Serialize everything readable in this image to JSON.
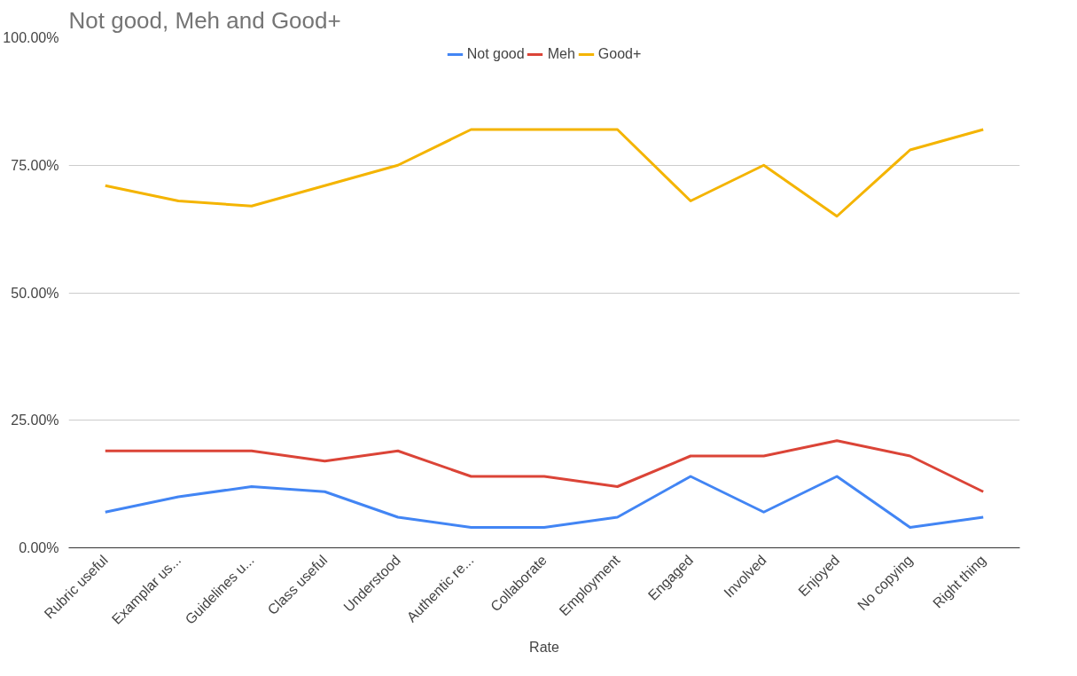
{
  "chart_data": {
    "type": "line",
    "title": "Not good, Meh and Good+",
    "xlabel": "Rate",
    "categories": [
      "Rubric useful",
      "Examplar us...",
      "Guidelines u...",
      "Class useful",
      "Understood",
      "Authentic re...",
      "Collaborate",
      "Employment",
      "Engaged",
      "Involved",
      "Enjoyed",
      "No copying",
      "Right thing"
    ],
    "series": [
      {
        "name": "Not good",
        "color": "#4285f4",
        "values": [
          7,
          10,
          12,
          11,
          6,
          4,
          4,
          6,
          14,
          7,
          14,
          4,
          6
        ]
      },
      {
        "name": "Meh",
        "color": "#db4437",
        "values": [
          19,
          19,
          19,
          17,
          19,
          14,
          14,
          12,
          18,
          18,
          21,
          18,
          11
        ]
      },
      {
        "name": "Good+",
        "color": "#f4b400",
        "values": [
          71,
          68,
          67,
          71,
          75,
          82,
          82,
          82,
          68,
          75,
          65,
          78,
          82
        ]
      }
    ],
    "ylim": [
      0,
      100
    ],
    "yticks": [
      {
        "value": 0,
        "label": "0.00%"
      },
      {
        "value": 25,
        "label": "25.00%"
      },
      {
        "value": 50,
        "label": "50.00%"
      },
      {
        "value": 75,
        "label": "75.00%"
      },
      {
        "value": 100,
        "label": "100.00%"
      }
    ],
    "grid": "y",
    "legend": "top",
    "marker": "none",
    "line_style": "solid"
  }
}
